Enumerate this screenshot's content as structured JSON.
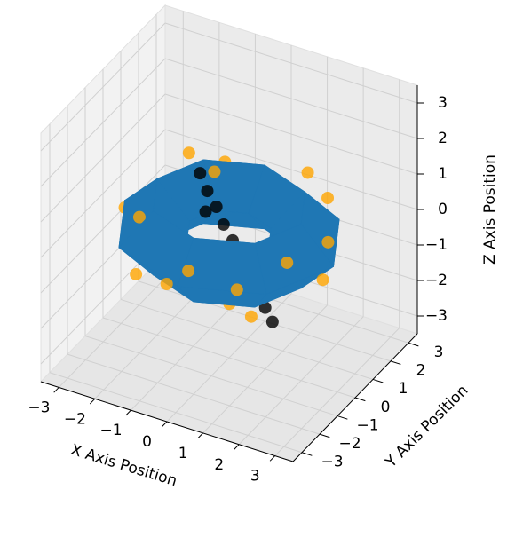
{
  "chart_data": {
    "type": "scatter3d",
    "xlabel": "X Axis Position",
    "ylabel": "Y Axis Position",
    "zlabel": "Z Axis Position",
    "xlim": [
      -3.5,
      3.5
    ],
    "ylim": [
      -3.5,
      3.5
    ],
    "zlim": [
      -3.5,
      3.5
    ],
    "xticks": [
      {
        "value": -3,
        "label": "−3"
      },
      {
        "value": -2,
        "label": "−2"
      },
      {
        "value": -1,
        "label": "−1"
      },
      0,
      1,
      2,
      3
    ],
    "yticks": [
      {
        "value": -3,
        "label": "−3"
      },
      {
        "value": -2,
        "label": "−2"
      },
      {
        "value": -1,
        "label": "−1"
      },
      0,
      1,
      2,
      3
    ],
    "zticks": [
      {
        "value": -3,
        "label": "−3"
      },
      {
        "value": -2,
        "label": "−2"
      },
      {
        "value": -1,
        "label": "−1"
      },
      0,
      1,
      2,
      3
    ],
    "grid": true,
    "surface": {
      "color": "#1f77b4",
      "x": [
        [
          2.9,
          2.05,
          0,
          -2.05,
          -2.9,
          -2.05,
          0,
          2.05
        ],
        [
          2,
          1.41,
          0,
          -1.41,
          -2,
          -1.41,
          0,
          1.41
        ],
        [
          1.1,
          0.78,
          0,
          -0.78,
          -1.1,
          -0.78,
          0,
          0.78
        ],
        [
          2,
          1.41,
          0,
          -1.41,
          -2,
          -1.41,
          0,
          1.41
        ]
      ],
      "y": [
        [
          0,
          2.05,
          2.9,
          2.05,
          0,
          -2.05,
          -2.9,
          -2.05
        ],
        [
          0,
          1.41,
          2,
          1.41,
          0,
          -1.41,
          -2,
          -1.41
        ],
        [
          0,
          0.78,
          1.1,
          0.78,
          0,
          -0.78,
          -1.1,
          -0.78
        ],
        [
          0,
          1.41,
          2,
          1.41,
          0,
          -1.41,
          -2,
          -1.41
        ]
      ],
      "z": [
        [
          0,
          0,
          0,
          0,
          0,
          0,
          0,
          0
        ],
        [
          0.9,
          0.9,
          0.9,
          0.9,
          0.9,
          0.9,
          0.9,
          0.9
        ],
        [
          0,
          0,
          0,
          0,
          0,
          0,
          0,
          0
        ],
        [
          -0.9,
          -0.9,
          -0.9,
          -0.9,
          -0.9,
          -0.9,
          -0.9,
          -0.9
        ]
      ]
    },
    "series": [
      {
        "color": "#000000",
        "x": [
          -1.2,
          -0.9,
          -0.6,
          -0.3,
          0,
          0.3,
          0.6,
          0.9,
          1.2,
          1.5,
          -0.8,
          0.5
        ],
        "y": [
          0.8,
          0.6,
          0.5,
          0.3,
          0.2,
          0,
          -0.1,
          -0.3,
          -0.4,
          -0.6,
          0.3,
          0.1
        ],
        "z": [
          0.9,
          0.6,
          0.3,
          0,
          -0.3,
          -0.6,
          -0.9,
          -1.2,
          -1.5,
          -1.7,
          0.2,
          -0.5
        ]
      },
      {
        "color": "#ffa500",
        "x": [
          2.5,
          1.8,
          0.5,
          -1.2,
          -2.4,
          -2.6,
          -1.5,
          0.2,
          1.6,
          2.8,
          -2.0,
          1.0,
          -0.5,
          2.2,
          -2.8,
          0.8,
          -1.8,
          2.0,
          -1.0,
          1.4
        ],
        "y": [
          0.5,
          1.9,
          2.6,
          2.2,
          1.0,
          -0.6,
          -2.2,
          -2.7,
          -2.0,
          -0.4,
          1.8,
          2.4,
          -2.5,
          -1.2,
          0.2,
          -1.6,
          -1.4,
          1.0,
          1.2,
          -2.4
        ],
        "z": [
          0.3,
          0.6,
          -0.4,
          0.5,
          -0.6,
          0.2,
          -0.5,
          0.4,
          -0.8,
          -0.2,
          0.7,
          0.8,
          -0.3,
          0.5,
          -0.7,
          -0.9,
          0.6,
          -0.9,
          0.8,
          0.1
        ]
      }
    ]
  }
}
